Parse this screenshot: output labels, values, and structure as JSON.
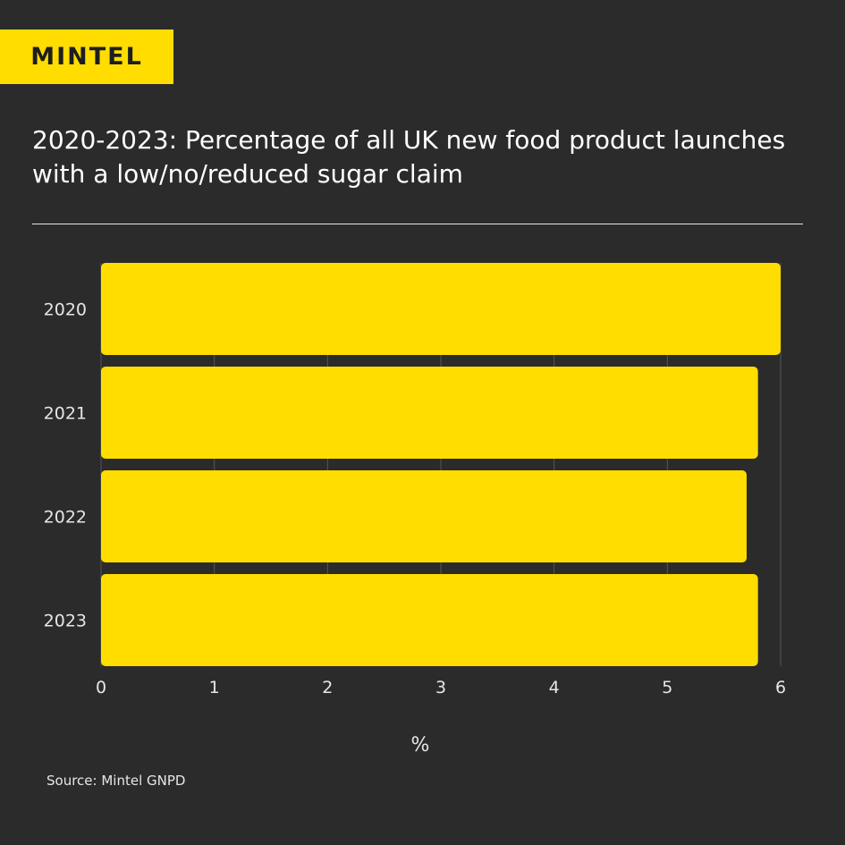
{
  "logo": {
    "text": "MINTEL"
  },
  "title": "2020-2023: Percentage of all UK new food product launches with a low/no/reduced sugar claim",
  "source": "Source: Mintel GNPD",
  "colors": {
    "background": "#2b2b2b",
    "bar": "#ffdd00",
    "grid": "#555555"
  },
  "chart_data": {
    "type": "bar",
    "orientation": "horizontal",
    "title": "2020-2023: Percentage of all UK new food product launches with a low/no/reduced sugar claim",
    "categories": [
      "2020",
      "2021",
      "2022",
      "2023"
    ],
    "values": [
      6.0,
      5.8,
      5.7,
      5.8
    ],
    "xlabel": "%",
    "ylabel": "",
    "xlim": [
      0,
      6
    ],
    "xticks": [
      "0",
      "1",
      "2",
      "3",
      "4",
      "5",
      "6"
    ],
    "grid": true
  }
}
